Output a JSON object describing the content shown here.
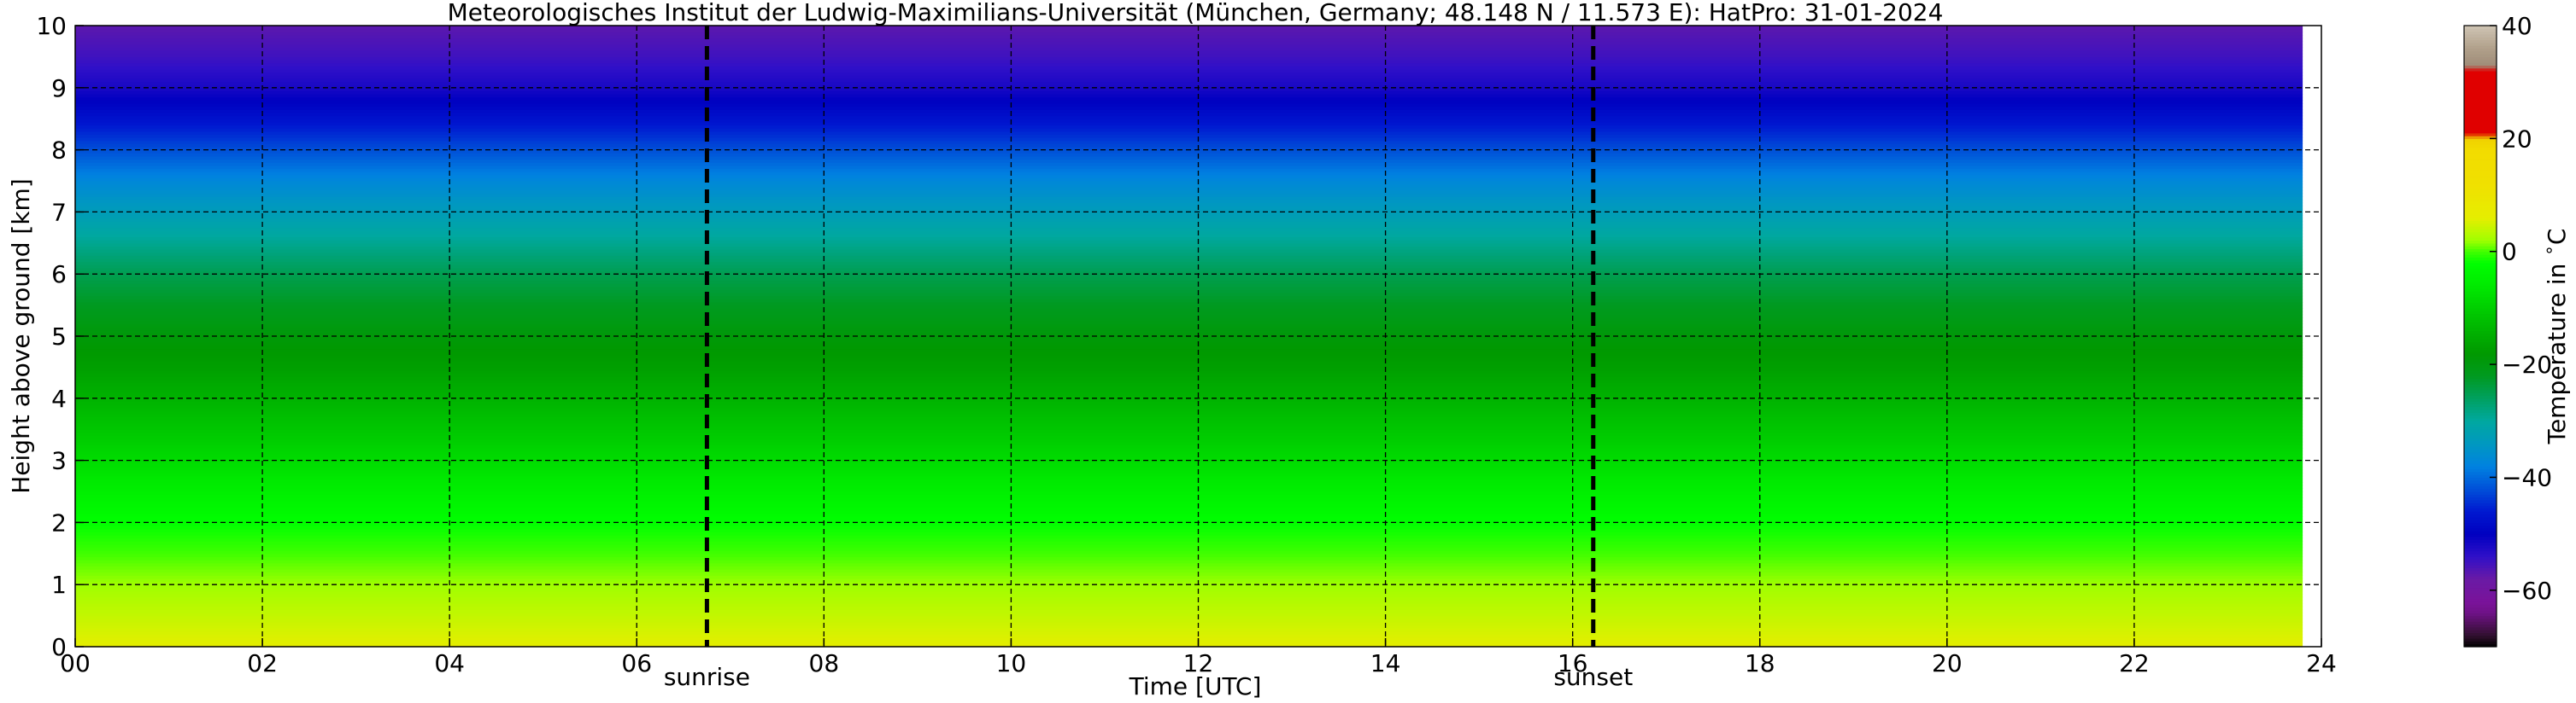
{
  "chart_data": {
    "type": "heatmap",
    "title": "Meteorologisches Institut der Ludwig-Maximilians-Universität (München, Germany; 48.148 N / 11.573 E):    HatPro: 31-01-2024",
    "xlabel": "Time [UTC]",
    "ylabel": "Height above ground [km]",
    "xlim": [
      0,
      24
    ],
    "ylim": [
      0,
      10
    ],
    "x_ticks": [
      0,
      2,
      4,
      6,
      8,
      10,
      12,
      14,
      16,
      18,
      20,
      22,
      24
    ],
    "x_tick_labels": [
      "00",
      "02",
      "04",
      "06",
      "08",
      "10",
      "12",
      "14",
      "16",
      "18",
      "20",
      "22",
      "24"
    ],
    "y_ticks": [
      0,
      1,
      2,
      3,
      4,
      5,
      6,
      7,
      8,
      9,
      10
    ],
    "y_tick_labels": [
      "0",
      "1",
      "2",
      "3",
      "4",
      "5",
      "6",
      "7",
      "8",
      "9",
      "10"
    ],
    "grid": true,
    "data_end_hour": 23.8,
    "temperature_profile": {
      "heights_km": [
        0,
        0.5,
        1.0,
        1.5,
        2.0,
        2.5,
        3.0,
        3.5,
        4.0,
        4.5,
        5.0,
        5.5,
        6.0,
        6.5,
        7.0,
        7.5,
        8.0,
        8.5,
        9.0,
        9.5,
        10.0
      ],
      "temperature_c": [
        6,
        4,
        2,
        0,
        -2,
        -5,
        -8,
        -11,
        -14,
        -17,
        -19,
        -22,
        -25,
        -29,
        -33,
        -37,
        -42,
        -47,
        -52,
        -55,
        -57
      ]
    },
    "annotations": [
      {
        "label": "sunrise",
        "x": 6.75
      },
      {
        "label": "sunset",
        "x": 16.22
      }
    ],
    "colorbar": {
      "label": "Temperature in $^\\circ$C",
      "vmin": -70,
      "vmax": 40,
      "ticks": [
        40,
        20,
        0,
        -20,
        -40,
        -60
      ],
      "tick_labels": [
        "40",
        "20",
        "0",
        "−20",
        "−40",
        "−60"
      ]
    }
  }
}
